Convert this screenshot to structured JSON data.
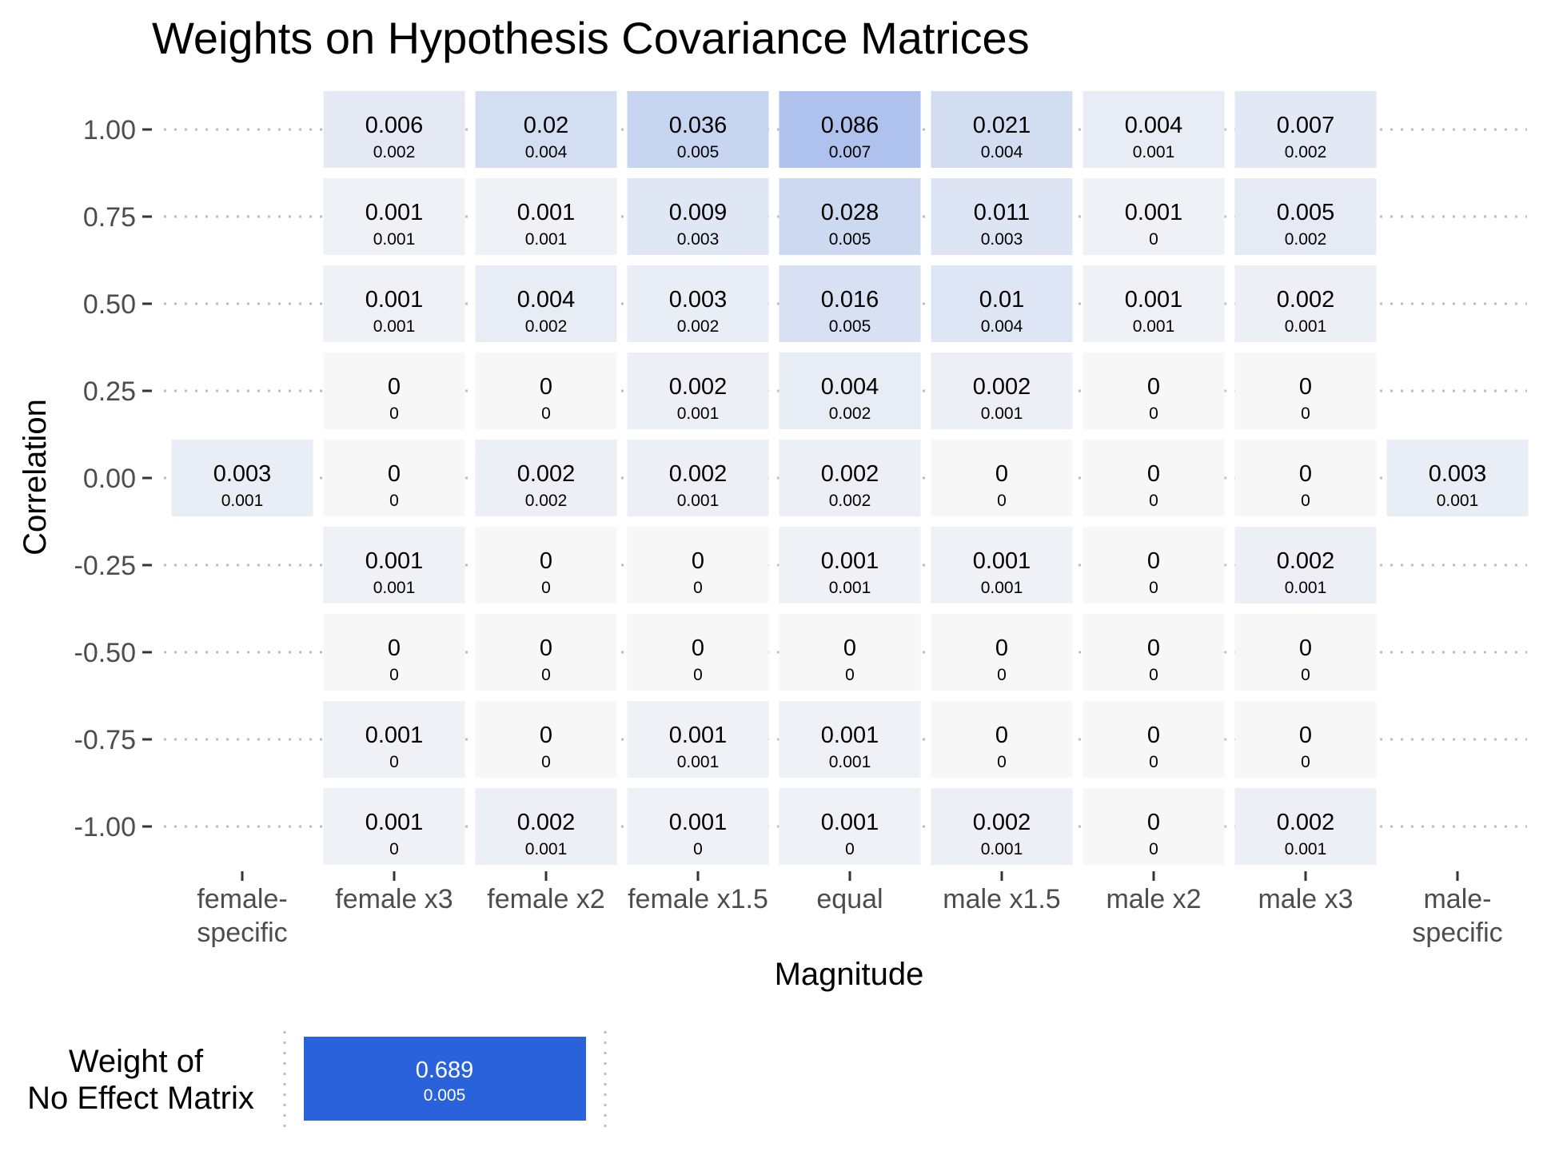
{
  "chart_data": [
    {
      "type": "heatmap",
      "title": "Weights on Hypothesis Covariance Matrices",
      "xlabel": "Magnitude",
      "ylabel": "Correlation",
      "x_categories": [
        {
          "line1": "female-",
          "line2": "specific"
        },
        {
          "line1": "female x3",
          "line2": ""
        },
        {
          "line1": "female x2",
          "line2": ""
        },
        {
          "line1": "female x1.5",
          "line2": ""
        },
        {
          "line1": "equal",
          "line2": ""
        },
        {
          "line1": "male x1.5",
          "line2": ""
        },
        {
          "line1": "male x2",
          "line2": ""
        },
        {
          "line1": "male x3",
          "line2": ""
        },
        {
          "line1": "male-",
          "line2": "specific"
        }
      ],
      "y_categories": [
        "1.00",
        "0.75",
        "0.50",
        "0.25",
        "0.00",
        "-0.25",
        "-0.50",
        "-0.75",
        "-1.00"
      ],
      "color_low": "#f7f7f7",
      "color_high": "#2962db",
      "color_max_value": 0.689,
      "grid": "dotted horizontal lines",
      "cells": [
        {
          "x": 1,
          "y": 0,
          "value": 0.006,
          "label": "0.006",
          "sub": "0.002"
        },
        {
          "x": 2,
          "y": 0,
          "value": 0.02,
          "label": "0.02",
          "sub": "0.004"
        },
        {
          "x": 3,
          "y": 0,
          "value": 0.036,
          "label": "0.036",
          "sub": "0.005"
        },
        {
          "x": 4,
          "y": 0,
          "value": 0.086,
          "label": "0.086",
          "sub": "0.007"
        },
        {
          "x": 5,
          "y": 0,
          "value": 0.021,
          "label": "0.021",
          "sub": "0.004"
        },
        {
          "x": 6,
          "y": 0,
          "value": 0.004,
          "label": "0.004",
          "sub": "0.001"
        },
        {
          "x": 7,
          "y": 0,
          "value": 0.007,
          "label": "0.007",
          "sub": "0.002"
        },
        {
          "x": 1,
          "y": 1,
          "value": 0.001,
          "label": "0.001",
          "sub": "0.001"
        },
        {
          "x": 2,
          "y": 1,
          "value": 0.001,
          "label": "0.001",
          "sub": "0.001"
        },
        {
          "x": 3,
          "y": 1,
          "value": 0.009,
          "label": "0.009",
          "sub": "0.003"
        },
        {
          "x": 4,
          "y": 1,
          "value": 0.028,
          "label": "0.028",
          "sub": "0.005"
        },
        {
          "x": 5,
          "y": 1,
          "value": 0.011,
          "label": "0.011",
          "sub": "0.003"
        },
        {
          "x": 6,
          "y": 1,
          "value": 0.001,
          "label": "0.001",
          "sub": "0"
        },
        {
          "x": 7,
          "y": 1,
          "value": 0.005,
          "label": "0.005",
          "sub": "0.002"
        },
        {
          "x": 1,
          "y": 2,
          "value": 0.001,
          "label": "0.001",
          "sub": "0.001"
        },
        {
          "x": 2,
          "y": 2,
          "value": 0.004,
          "label": "0.004",
          "sub": "0.002"
        },
        {
          "x": 3,
          "y": 2,
          "value": 0.003,
          "label": "0.003",
          "sub": "0.002"
        },
        {
          "x": 4,
          "y": 2,
          "value": 0.016,
          "label": "0.016",
          "sub": "0.005"
        },
        {
          "x": 5,
          "y": 2,
          "value": 0.01,
          "label": "0.01",
          "sub": "0.004"
        },
        {
          "x": 6,
          "y": 2,
          "value": 0.001,
          "label": "0.001",
          "sub": "0.001"
        },
        {
          "x": 7,
          "y": 2,
          "value": 0.002,
          "label": "0.002",
          "sub": "0.001"
        },
        {
          "x": 1,
          "y": 3,
          "value": 0,
          "label": "0",
          "sub": "0"
        },
        {
          "x": 2,
          "y": 3,
          "value": 0,
          "label": "0",
          "sub": "0"
        },
        {
          "x": 3,
          "y": 3,
          "value": 0.002,
          "label": "0.002",
          "sub": "0.001"
        },
        {
          "x": 4,
          "y": 3,
          "value": 0.004,
          "label": "0.004",
          "sub": "0.002"
        },
        {
          "x": 5,
          "y": 3,
          "value": 0.002,
          "label": "0.002",
          "sub": "0.001"
        },
        {
          "x": 6,
          "y": 3,
          "value": 0,
          "label": "0",
          "sub": "0"
        },
        {
          "x": 7,
          "y": 3,
          "value": 0,
          "label": "0",
          "sub": "0"
        },
        {
          "x": 0,
          "y": 4,
          "value": 0.003,
          "label": "0.003",
          "sub": "0.001"
        },
        {
          "x": 1,
          "y": 4,
          "value": 0,
          "label": "0",
          "sub": "0"
        },
        {
          "x": 2,
          "y": 4,
          "value": 0.002,
          "label": "0.002",
          "sub": "0.002"
        },
        {
          "x": 3,
          "y": 4,
          "value": 0.002,
          "label": "0.002",
          "sub": "0.001"
        },
        {
          "x": 4,
          "y": 4,
          "value": 0.002,
          "label": "0.002",
          "sub": "0.002"
        },
        {
          "x": 5,
          "y": 4,
          "value": 0,
          "label": "0",
          "sub": "0"
        },
        {
          "x": 6,
          "y": 4,
          "value": 0,
          "label": "0",
          "sub": "0"
        },
        {
          "x": 7,
          "y": 4,
          "value": 0,
          "label": "0",
          "sub": "0"
        },
        {
          "x": 8,
          "y": 4,
          "value": 0.003,
          "label": "0.003",
          "sub": "0.001"
        },
        {
          "x": 1,
          "y": 5,
          "value": 0.001,
          "label": "0.001",
          "sub": "0.001"
        },
        {
          "x": 2,
          "y": 5,
          "value": 0,
          "label": "0",
          "sub": "0"
        },
        {
          "x": 3,
          "y": 5,
          "value": 0,
          "label": "0",
          "sub": "0"
        },
        {
          "x": 4,
          "y": 5,
          "value": 0.001,
          "label": "0.001",
          "sub": "0.001"
        },
        {
          "x": 5,
          "y": 5,
          "value": 0.001,
          "label": "0.001",
          "sub": "0.001"
        },
        {
          "x": 6,
          "y": 5,
          "value": 0,
          "label": "0",
          "sub": "0"
        },
        {
          "x": 7,
          "y": 5,
          "value": 0.002,
          "label": "0.002",
          "sub": "0.001"
        },
        {
          "x": 1,
          "y": 6,
          "value": 0,
          "label": "0",
          "sub": "0"
        },
        {
          "x": 2,
          "y": 6,
          "value": 0,
          "label": "0",
          "sub": "0"
        },
        {
          "x": 3,
          "y": 6,
          "value": 0,
          "label": "0",
          "sub": "0"
        },
        {
          "x": 4,
          "y": 6,
          "value": 0,
          "label": "0",
          "sub": "0"
        },
        {
          "x": 5,
          "y": 6,
          "value": 0,
          "label": "0",
          "sub": "0"
        },
        {
          "x": 6,
          "y": 6,
          "value": 0,
          "label": "0",
          "sub": "0"
        },
        {
          "x": 7,
          "y": 6,
          "value": 0,
          "label": "0",
          "sub": "0"
        },
        {
          "x": 1,
          "y": 7,
          "value": 0.001,
          "label": "0.001",
          "sub": "0"
        },
        {
          "x": 2,
          "y": 7,
          "value": 0,
          "label": "0",
          "sub": "0"
        },
        {
          "x": 3,
          "y": 7,
          "value": 0.001,
          "label": "0.001",
          "sub": "0.001"
        },
        {
          "x": 4,
          "y": 7,
          "value": 0.001,
          "label": "0.001",
          "sub": "0.001"
        },
        {
          "x": 5,
          "y": 7,
          "value": 0,
          "label": "0",
          "sub": "0"
        },
        {
          "x": 6,
          "y": 7,
          "value": 0,
          "label": "0",
          "sub": "0"
        },
        {
          "x": 7,
          "y": 7,
          "value": 0,
          "label": "0",
          "sub": "0"
        },
        {
          "x": 1,
          "y": 8,
          "value": 0.001,
          "label": "0.001",
          "sub": "0"
        },
        {
          "x": 2,
          "y": 8,
          "value": 0.002,
          "label": "0.002",
          "sub": "0.001"
        },
        {
          "x": 3,
          "y": 8,
          "value": 0.001,
          "label": "0.001",
          "sub": "0"
        },
        {
          "x": 4,
          "y": 8,
          "value": 0.001,
          "label": "0.001",
          "sub": "0"
        },
        {
          "x": 5,
          "y": 8,
          "value": 0.002,
          "label": "0.002",
          "sub": "0.001"
        },
        {
          "x": 6,
          "y": 8,
          "value": 0,
          "label": "0",
          "sub": "0"
        },
        {
          "x": 7,
          "y": 8,
          "value": 0.002,
          "label": "0.002",
          "sub": "0.001"
        }
      ]
    },
    {
      "type": "bar",
      "label_line1": "Weight of",
      "label_line2": "No Effect Matrix",
      "value": 0.689,
      "value_label": "0.689",
      "sub_label": "0.005",
      "color": "#2962db"
    }
  ]
}
